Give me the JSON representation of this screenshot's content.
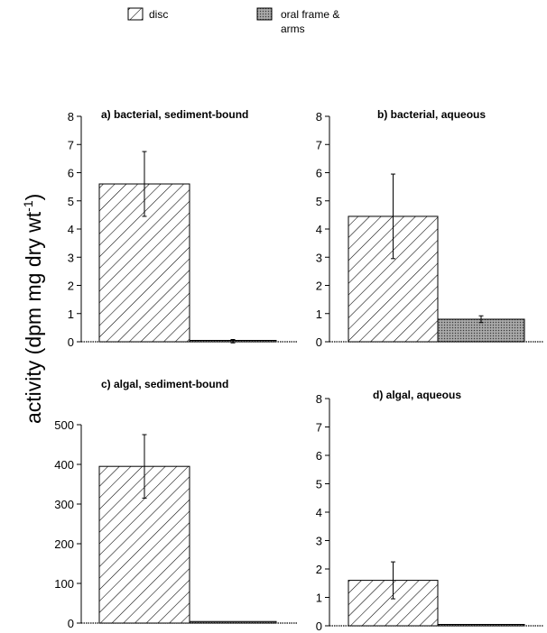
{
  "chart_data": {
    "type": "bar",
    "ylabel": "activity  (dpm  mg dry wt",
    "ylabel_superscript": "-1",
    "ylabel_close": ")",
    "legend": [
      {
        "label": "disc",
        "pattern": "hatch"
      },
      {
        "label": "oral frame &",
        "label2": "arms",
        "pattern": "stipple"
      }
    ],
    "panels": [
      {
        "title": "a) bacterial, sediment-bound",
        "ylim": [
          0,
          8
        ],
        "yticks": [
          "0",
          "1",
          "2",
          "3",
          "4",
          "5",
          "6",
          "7",
          "8"
        ],
        "series": [
          {
            "name": "disc",
            "value": 5.6,
            "error": 1.15
          },
          {
            "name": "oral frame & arms",
            "value": 0.02,
            "error": 0.06
          }
        ]
      },
      {
        "title": "b) bacterial, aqueous",
        "ylim": [
          0,
          8
        ],
        "yticks": [
          "0",
          "1",
          "2",
          "3",
          "4",
          "5",
          "6",
          "7",
          "8"
        ],
        "series": [
          {
            "name": "disc",
            "value": 4.45,
            "error": 1.5
          },
          {
            "name": "oral frame & arms",
            "value": 0.8,
            "error": 0.12
          }
        ]
      },
      {
        "title": "c) algal, sediment-bound",
        "ylim": [
          0,
          500
        ],
        "yticks": [
          "0",
          "100",
          "200",
          "300",
          "400",
          "500"
        ],
        "series": [
          {
            "name": "disc",
            "value": 395,
            "error": 80
          },
          {
            "name": "oral frame & arms",
            "value": 4,
            "error": 0
          }
        ]
      },
      {
        "title": "d) algal, aqueous",
        "ylim": [
          0,
          8
        ],
        "yticks": [
          "0",
          "1",
          "2",
          "3",
          "4",
          "5",
          "6",
          "7",
          "8"
        ],
        "series": [
          {
            "name": "disc",
            "value": 1.6,
            "error": 0.65
          },
          {
            "name": "oral frame & arms",
            "value": 0.02,
            "error": 0
          }
        ]
      }
    ]
  }
}
